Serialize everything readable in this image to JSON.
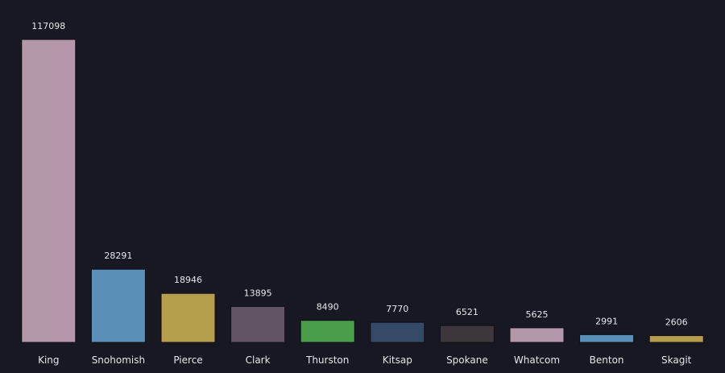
{
  "chart_data": {
    "type": "bar",
    "title": "",
    "xlabel": "",
    "ylabel": "",
    "ylim": [
      0,
      117098
    ],
    "grid": false,
    "legend": "none",
    "categories": [
      "King",
      "Snohomish",
      "Pierce",
      "Clark",
      "Thurston",
      "Kitsap",
      "Spokane",
      "Whatcom",
      "Benton",
      "Skagit"
    ],
    "values": [
      117098,
      28291,
      18946,
      13895,
      8490,
      7770,
      6521,
      5625,
      2991,
      2606
    ],
    "colors": [
      "#b497a9",
      "#5a8fb8",
      "#b59e4c",
      "#635463",
      "#4a9e4a",
      "#344a66",
      "#3d363d",
      "#b497a9",
      "#5a8fb8",
      "#b59e4c"
    ],
    "background": "#171821"
  }
}
